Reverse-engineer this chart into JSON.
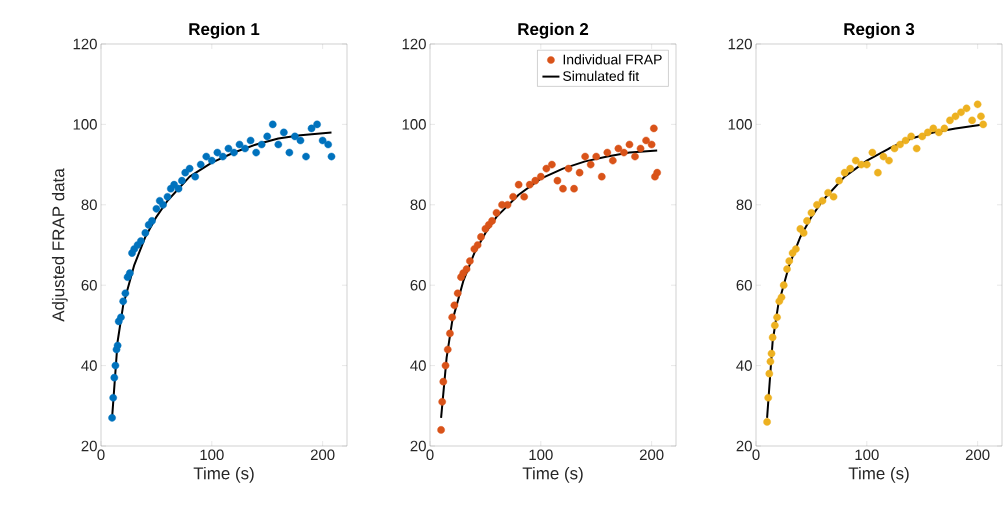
{
  "chart_data": [
    {
      "type": "scatter",
      "title": "Region 1",
      "xlabel": "Time (s)",
      "ylabel": "Adjusted FRAP data",
      "xlim": [
        0,
        222
      ],
      "ylim": [
        20,
        120
      ],
      "xticks": [
        0,
        100,
        200
      ],
      "yticks": [
        20,
        40,
        60,
        80,
        100,
        120
      ],
      "series": [
        {
          "type": "scatter",
          "color": "#0072bd",
          "marker": "circle",
          "x": [
            10,
            11,
            12,
            13,
            14,
            15,
            16,
            18,
            20,
            22,
            24,
            26,
            28,
            30,
            33,
            36,
            40,
            43,
            46,
            50,
            53,
            56,
            60,
            63,
            66,
            70,
            73,
            76,
            80,
            85,
            90,
            95,
            100,
            105,
            110,
            115,
            120,
            125,
            130,
            135,
            140,
            145,
            150,
            155,
            160,
            165,
            170,
            175,
            180,
            185,
            190,
            195,
            200,
            205,
            208
          ],
          "values": [
            27,
            32,
            37,
            40,
            44,
            45,
            51,
            52,
            56,
            58,
            62,
            63,
            68,
            69,
            70,
            71,
            73,
            75,
            76,
            79,
            81,
            80,
            82,
            84,
            85,
            84,
            86,
            88,
            89,
            87,
            90,
            92,
            91,
            93,
            92,
            94,
            93,
            95,
            94,
            96,
            93,
            95,
            97,
            100,
            95,
            98,
            93,
            97,
            96,
            92,
            99,
            100,
            96,
            95,
            92
          ]
        },
        {
          "type": "line",
          "color": "#000000",
          "line_style": "solid",
          "x": [
            10,
            15,
            20,
            30,
            40,
            50,
            60,
            80,
            100,
            120,
            140,
            160,
            180,
            208
          ],
          "values": [
            27,
            46,
            55,
            65,
            72,
            77,
            81,
            87,
            90.5,
            93,
            95,
            96.5,
            97.3,
            98
          ]
        }
      ]
    },
    {
      "type": "scatter",
      "title": "Region 2",
      "xlabel": "Time (s)",
      "xlim": [
        0,
        222
      ],
      "ylim": [
        20,
        120
      ],
      "xticks": [
        0,
        100,
        200
      ],
      "yticks": [
        20,
        40,
        60,
        80,
        100,
        120
      ],
      "legend": "top right",
      "series": [
        {
          "type": "scatter",
          "name": "Individual FRAP",
          "color": "#d95319",
          "marker": "circle",
          "x": [
            10,
            11,
            12,
            14,
            16,
            18,
            20,
            22,
            25,
            28,
            30,
            33,
            36,
            40,
            43,
            46,
            50,
            53,
            56,
            60,
            65,
            70,
            75,
            80,
            85,
            90,
            95,
            100,
            105,
            110,
            115,
            120,
            125,
            130,
            135,
            140,
            145,
            150,
            155,
            160,
            165,
            170,
            175,
            180,
            185,
            190,
            195,
            200,
            202,
            203,
            205
          ],
          "values": [
            24,
            31,
            36,
            40,
            44,
            48,
            52,
            55,
            58,
            62,
            63,
            64,
            66,
            69,
            70,
            72,
            74,
            75,
            76,
            78,
            80,
            80,
            82,
            85,
            82,
            85,
            86,
            87,
            89,
            90,
            86,
            84,
            89,
            84,
            88,
            92,
            90,
            92,
            87,
            93,
            91,
            94,
            93,
            95,
            92,
            94,
            96,
            95,
            99,
            87,
            88
          ]
        },
        {
          "type": "line",
          "name": "Simulated fit",
          "color": "#000000",
          "line_style": "solid",
          "x": [
            10,
            15,
            20,
            30,
            40,
            50,
            60,
            80,
            100,
            120,
            140,
            160,
            180,
            205
          ],
          "values": [
            27,
            42,
            51,
            61,
            68,
            73,
            77,
            82.5,
            86.5,
            89,
            90.8,
            92,
            93,
            93.5
          ]
        }
      ]
    },
    {
      "type": "scatter",
      "title": "Region 3",
      "xlabel": "Time (s)",
      "xlim": [
        0,
        222
      ],
      "ylim": [
        20,
        120
      ],
      "xticks": [
        0,
        100,
        200
      ],
      "yticks": [
        20,
        40,
        60,
        80,
        100,
        120
      ],
      "series": [
        {
          "type": "scatter",
          "color": "#edb120",
          "marker": "circle",
          "x": [
            10,
            11,
            12,
            13,
            14,
            15,
            17,
            19,
            21,
            23,
            25,
            28,
            30,
            33,
            36,
            40,
            43,
            46,
            50,
            55,
            60,
            65,
            70,
            75,
            80,
            85,
            90,
            95,
            100,
            105,
            110,
            115,
            120,
            125,
            130,
            135,
            140,
            145,
            150,
            155,
            160,
            165,
            170,
            175,
            180,
            185,
            190,
            195,
            200,
            203,
            205
          ],
          "values": [
            26,
            32,
            38,
            41,
            43,
            47,
            50,
            52,
            56,
            57,
            60,
            64,
            66,
            68,
            69,
            74,
            73,
            76,
            78,
            80,
            81,
            83,
            82,
            86,
            88,
            89,
            91,
            90,
            90,
            93,
            88,
            92,
            91,
            94,
            95,
            96,
            97,
            94,
            97,
            98,
            99,
            98,
            99,
            101,
            102,
            103,
            104,
            101,
            105,
            102,
            100
          ]
        },
        {
          "type": "line",
          "color": "#000000",
          "line_style": "solid",
          "x": [
            10,
            15,
            20,
            30,
            40,
            50,
            60,
            80,
            100,
            120,
            140,
            160,
            180,
            205
          ],
          "values": [
            27,
            46,
            55,
            65,
            72,
            77,
            81,
            87,
            91,
            94,
            96.5,
            98,
            99,
            100
          ]
        }
      ]
    }
  ]
}
